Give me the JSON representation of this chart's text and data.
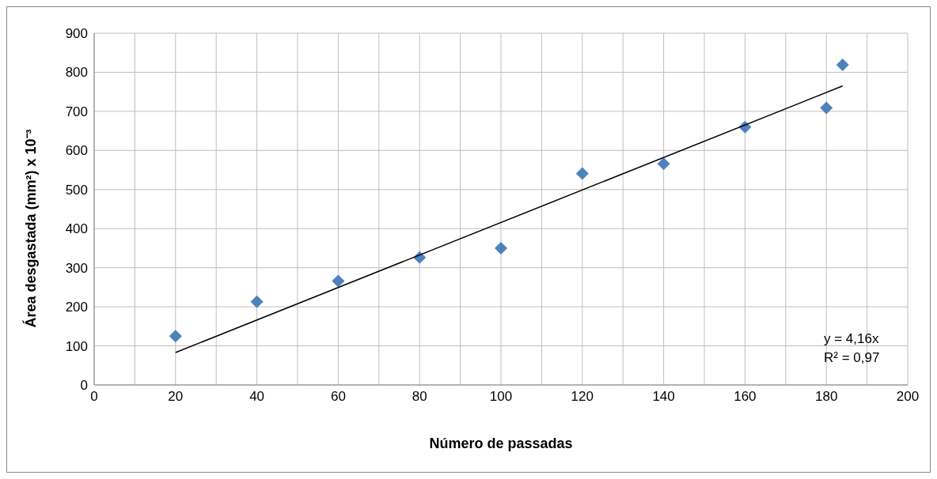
{
  "chart_data": {
    "type": "scatter",
    "xlabel": "Número de passadas",
    "ylabel": "Área desgastada (mm²) x 10⁻³",
    "series": [
      {
        "color": "#4f81bd",
        "marker": "diamond",
        "x": [
          20,
          40,
          60,
          80,
          100,
          120,
          140,
          160,
          180,
          184
        ],
        "values": [
          125,
          213,
          266,
          326,
          350,
          541,
          566,
          660,
          709,
          819
        ]
      },
      {
        "type": "line",
        "color": "#000000",
        "marker": "none",
        "x": [
          20,
          184
        ],
        "values": [
          83,
          765
        ]
      }
    ],
    "xlim": [
      0,
      200
    ],
    "xticks": [
      0,
      {
        "value": 10,
        "label": null
      },
      20,
      {
        "value": 30,
        "label": null
      },
      40,
      {
        "value": 50,
        "label": null
      },
      60,
      {
        "value": 70,
        "label": null
      },
      80,
      {
        "value": 90,
        "label": null
      },
      100,
      {
        "value": 110,
        "label": null
      },
      120,
      {
        "value": 130,
        "label": null
      },
      140,
      {
        "value": 150,
        "label": null
      },
      160,
      {
        "value": 170,
        "label": null
      },
      180,
      {
        "value": 190,
        "label": null
      },
      200
    ],
    "ylim": [
      0,
      900
    ],
    "yticks": [
      0,
      100,
      200,
      300,
      400,
      500,
      600,
      700,
      800,
      900
    ],
    "grid": true,
    "annotations": [
      "y = 4,16x",
      "R² = 0,97"
    ]
  }
}
